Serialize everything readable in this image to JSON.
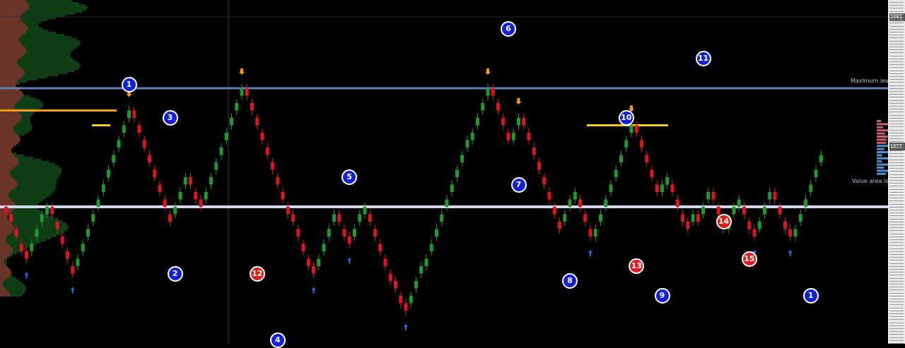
{
  "colors": {
    "background": "#000000",
    "bull": "#1f9a2c",
    "bear": "#e0141e",
    "max_level": "#5d7fb5",
    "value_area_low": "#cfd8ee",
    "orange_level": "#f39a12",
    "yellow_level": "#f2d01a",
    "marker_blue": "#1321d6",
    "marker_red": "#e21b1b",
    "profile_brown": "#6a3528",
    "profile_green": "#0f3d16"
  },
  "levels": {
    "maximum_label": "Maximum level",
    "value_area_low_label": "Value area low"
  },
  "axis": {
    "top_label": "1682",
    "current_label": "1677"
  },
  "chart_data": {
    "type": "renko",
    "brick_size": 1,
    "price_range": [
      1647,
      1687
    ],
    "closes": [
      1660,
      1659,
      1657,
      1655,
      1654,
      1656,
      1658,
      1660,
      1661,
      1660,
      1658,
      1656,
      1654,
      1652,
      1654,
      1656,
      1658,
      1660,
      1662,
      1664,
      1666,
      1668,
      1670,
      1672,
      1674,
      1673,
      1671,
      1669,
      1667,
      1665,
      1663,
      1661,
      1659,
      1661,
      1663,
      1665,
      1664,
      1662,
      1661,
      1663,
      1665,
      1667,
      1669,
      1671,
      1673,
      1675,
      1677,
      1676,
      1674,
      1672,
      1670,
      1668,
      1666,
      1664,
      1662,
      1660,
      1659,
      1657,
      1655,
      1653,
      1652,
      1654,
      1656,
      1658,
      1660,
      1659,
      1657,
      1656,
      1658,
      1660,
      1661,
      1659,
      1657,
      1655,
      1653,
      1651,
      1650,
      1648,
      1647,
      1649,
      1651,
      1653,
      1654,
      1656,
      1658,
      1660,
      1662,
      1664,
      1666,
      1668,
      1670,
      1671,
      1673,
      1675,
      1677,
      1676,
      1674,
      1672,
      1670,
      1671,
      1673,
      1672,
      1670,
      1668,
      1666,
      1664,
      1662,
      1660,
      1658,
      1660,
      1662,
      1663,
      1661,
      1659,
      1657,
      1658,
      1660,
      1662,
      1664,
      1666,
      1668,
      1670,
      1672,
      1671,
      1669,
      1667,
      1665,
      1663,
      1664,
      1665,
      1663,
      1661,
      1659,
      1658,
      1660,
      1659,
      1661,
      1663,
      1662,
      1660,
      1658,
      1659,
      1661,
      1662,
      1660,
      1658,
      1657,
      1659,
      1661,
      1663,
      1662,
      1660,
      1658,
      1657,
      1658,
      1660,
      1662,
      1664,
      1666,
      1668
    ],
    "annotations": [
      {
        "label": "1",
        "kind": "blue",
        "bar": 24,
        "price": 1677.5
      },
      {
        "label": "2",
        "kind": "blue",
        "bar": 33,
        "price": 1652
      },
      {
        "label": "3",
        "kind": "blue",
        "bar": 32,
        "price": 1673
      },
      {
        "label": "12",
        "kind": "red",
        "bar": 49,
        "price": 1652
      },
      {
        "label": "4",
        "kind": "blue",
        "bar": 53,
        "price": 1643
      },
      {
        "label": "5",
        "kind": "blue",
        "bar": 67,
        "price": 1665
      },
      {
        "label": "6",
        "kind": "blue",
        "bar": 98,
        "price": 1685
      },
      {
        "label": "7",
        "kind": "blue",
        "bar": 100,
        "price": 1664
      },
      {
        "label": "8",
        "kind": "blue",
        "bar": 110,
        "price": 1651
      },
      {
        "label": "10",
        "kind": "blue",
        "bar": 121,
        "price": 1673
      },
      {
        "label": "13",
        "kind": "red",
        "bar": 123,
        "price": 1653
      },
      {
        "label": "9",
        "kind": "blue",
        "bar": 128,
        "price": 1649
      },
      {
        "label": "11",
        "kind": "blue",
        "bar": 136,
        "price": 1681
      },
      {
        "label": "14",
        "kind": "red",
        "bar": 140,
        "price": 1659
      },
      {
        "label": "15",
        "kind": "red",
        "bar": 145,
        "price": 1654
      },
      {
        "label": "1",
        "kind": "blue",
        "bar": 157,
        "price": 1649
      }
    ]
  }
}
